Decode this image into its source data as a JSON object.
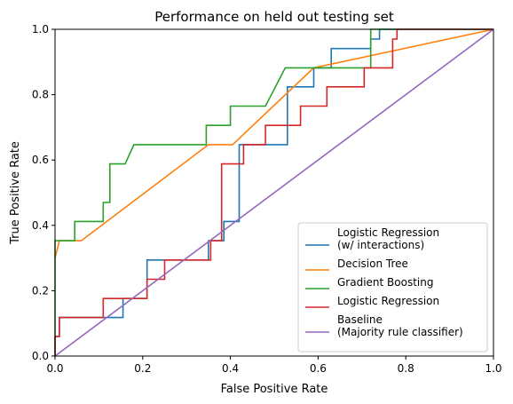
{
  "chart_data": {
    "type": "line",
    "title": "Performance on held out testing set",
    "xlabel": "False Positive Rate",
    "ylabel": "True Positive Rate",
    "xlim": [
      0,
      1
    ],
    "ylim": [
      0,
      1
    ],
    "xticks": [
      "0.0",
      "0.2",
      "0.4",
      "0.6",
      "0.8",
      "1.0"
    ],
    "yticks": [
      "0.0",
      "0.2",
      "0.4",
      "0.6",
      "0.8",
      "1.0"
    ],
    "grid": false,
    "legend_position": "lower-right",
    "series": [
      {
        "name": "Logistic Regression\n(w/ interactions)",
        "color": "#1f77b4",
        "points": [
          [
            0,
            0
          ],
          [
            0,
            0.06
          ],
          [
            0.01,
            0.06
          ],
          [
            0.01,
            0.118
          ],
          [
            0.155,
            0.118
          ],
          [
            0.155,
            0.176
          ],
          [
            0.21,
            0.176
          ],
          [
            0.21,
            0.294
          ],
          [
            0.35,
            0.294
          ],
          [
            0.35,
            0.353
          ],
          [
            0.385,
            0.353
          ],
          [
            0.385,
            0.412
          ],
          [
            0.42,
            0.412
          ],
          [
            0.42,
            0.647
          ],
          [
            0.53,
            0.647
          ],
          [
            0.53,
            0.824
          ],
          [
            0.59,
            0.824
          ],
          [
            0.59,
            0.882
          ],
          [
            0.63,
            0.882
          ],
          [
            0.63,
            0.941
          ],
          [
            0.72,
            0.941
          ],
          [
            0.72,
            0.97
          ],
          [
            0.74,
            0.97
          ],
          [
            0.74,
            1.0
          ],
          [
            1.0,
            1.0
          ]
        ]
      },
      {
        "name": "Decision Tree",
        "color": "#ff7f0e",
        "points": [
          [
            0,
            0.3
          ],
          [
            0.01,
            0.353
          ],
          [
            0.06,
            0.353
          ],
          [
            0.35,
            0.647
          ],
          [
            0.405,
            0.647
          ],
          [
            0.59,
            0.882
          ],
          [
            1.0,
            1.0
          ]
        ]
      },
      {
        "name": "Gradient Boosting",
        "color": "#2ca02c",
        "points": [
          [
            0,
            0
          ],
          [
            0,
            0.353
          ],
          [
            0.045,
            0.353
          ],
          [
            0.045,
            0.412
          ],
          [
            0.11,
            0.412
          ],
          [
            0.11,
            0.47
          ],
          [
            0.125,
            0.47
          ],
          [
            0.125,
            0.588
          ],
          [
            0.16,
            0.588
          ],
          [
            0.18,
            0.647
          ],
          [
            0.345,
            0.647
          ],
          [
            0.345,
            0.706
          ],
          [
            0.4,
            0.706
          ],
          [
            0.4,
            0.765
          ],
          [
            0.48,
            0.765
          ],
          [
            0.525,
            0.882
          ],
          [
            0.72,
            0.882
          ],
          [
            0.72,
            1.0
          ],
          [
            1.0,
            1.0
          ]
        ]
      },
      {
        "name": "Logistic Regression",
        "color": "#d62728",
        "points": [
          [
            0,
            0
          ],
          [
            0,
            0.06
          ],
          [
            0.01,
            0.06
          ],
          [
            0.01,
            0.118
          ],
          [
            0.11,
            0.118
          ],
          [
            0.11,
            0.176
          ],
          [
            0.21,
            0.176
          ],
          [
            0.21,
            0.235
          ],
          [
            0.25,
            0.235
          ],
          [
            0.25,
            0.294
          ],
          [
            0.355,
            0.294
          ],
          [
            0.355,
            0.353
          ],
          [
            0.38,
            0.353
          ],
          [
            0.38,
            0.588
          ],
          [
            0.43,
            0.588
          ],
          [
            0.43,
            0.647
          ],
          [
            0.48,
            0.647
          ],
          [
            0.48,
            0.706
          ],
          [
            0.56,
            0.706
          ],
          [
            0.56,
            0.765
          ],
          [
            0.62,
            0.765
          ],
          [
            0.62,
            0.824
          ],
          [
            0.705,
            0.824
          ],
          [
            0.705,
            0.882
          ],
          [
            0.77,
            0.882
          ],
          [
            0.77,
            0.97
          ],
          [
            0.78,
            0.97
          ],
          [
            0.78,
            1.0
          ],
          [
            1.0,
            1.0
          ]
        ]
      },
      {
        "name": "Baseline\n(Majority rule classifier)",
        "color": "#9467bd",
        "points": [
          [
            0,
            0
          ],
          [
            1,
            1
          ]
        ]
      }
    ]
  }
}
